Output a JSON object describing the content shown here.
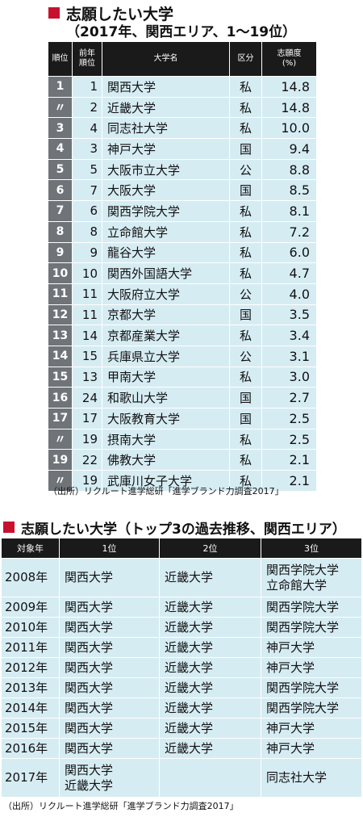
{
  "chart1": {
    "title": "志願したい大学",
    "subtitle": "（2017年、関西エリア、1～19位）",
    "headers": {
      "rank": "順位",
      "prev_rank": [
        "前年",
        "順位"
      ],
      "name": "大学名",
      "type": "区分",
      "rate": [
        "志願度",
        "(%)"
      ]
    },
    "rows": [
      {
        "rank": "1",
        "prev": "1",
        "name": "関西大学",
        "type": "私",
        "rate": "14.8"
      },
      {
        "rank": "〃",
        "prev": "2",
        "name": "近畿大学",
        "type": "私",
        "rate": "14.8"
      },
      {
        "rank": "3",
        "prev": "4",
        "name": "同志社大学",
        "type": "私",
        "rate": "10.0"
      },
      {
        "rank": "4",
        "prev": "3",
        "name": "神戸大学",
        "type": "国",
        "rate": "9.4"
      },
      {
        "rank": "5",
        "prev": "5",
        "name": "大阪市立大学",
        "type": "公",
        "rate": "8.8"
      },
      {
        "rank": "6",
        "prev": "7",
        "name": "大阪大学",
        "type": "国",
        "rate": "8.5"
      },
      {
        "rank": "7",
        "prev": "6",
        "name": "関西学院大学",
        "type": "私",
        "rate": "8.1"
      },
      {
        "rank": "8",
        "prev": "8",
        "name": "立命館大学",
        "type": "私",
        "rate": "7.2"
      },
      {
        "rank": "9",
        "prev": "9",
        "name": "龍谷大学",
        "type": "私",
        "rate": "6.0"
      },
      {
        "rank": "10",
        "prev": "10",
        "name": "関西外国語大学",
        "type": "私",
        "rate": "4.7"
      },
      {
        "rank": "11",
        "prev": "11",
        "name": "大阪府立大学",
        "type": "公",
        "rate": "4.0"
      },
      {
        "rank": "12",
        "prev": "11",
        "name": "京都大学",
        "type": "国",
        "rate": "3.5"
      },
      {
        "rank": "13",
        "prev": "14",
        "name": "京都産業大学",
        "type": "私",
        "rate": "3.4"
      },
      {
        "rank": "14",
        "prev": "15",
        "name": "兵庫県立大学",
        "type": "公",
        "rate": "3.1"
      },
      {
        "rank": "15",
        "prev": "13",
        "name": "甲南大学",
        "type": "私",
        "rate": "3.0"
      },
      {
        "rank": "16",
        "prev": "24",
        "name": "和歌山大学",
        "type": "国",
        "rate": "2.7"
      },
      {
        "rank": "17",
        "prev": "17",
        "name": "大阪教育大学",
        "type": "国",
        "rate": "2.5"
      },
      {
        "rank": "〃",
        "prev": "19",
        "name": "摂南大学",
        "type": "私",
        "rate": "2.5"
      },
      {
        "rank": "19",
        "prev": "22",
        "name": "佛教大学",
        "type": "私",
        "rate": "2.1"
      },
      {
        "rank": "〃",
        "prev": "19",
        "name": "武庫川女子大学",
        "type": "私",
        "rate": "2.1"
      }
    ],
    "source": "（出所）リクルート進学総研「進学ブランド力調査2017」"
  },
  "chart2": {
    "title": "志願したい大学（トップ3の過去推移、関西エリア）",
    "headers": {
      "year": "対象年",
      "first": "1位",
      "second": "2位",
      "third": "3位"
    },
    "rows": [
      {
        "year": "2008年",
        "first": [
          "関西大学"
        ],
        "second": [
          "近畿大学"
        ],
        "third": [
          "関西学院大学",
          "立命館大学"
        ]
      },
      {
        "year": "2009年",
        "first": [
          "関西大学"
        ],
        "second": [
          "近畿大学"
        ],
        "third": [
          "関西学院大学"
        ]
      },
      {
        "year": "2010年",
        "first": [
          "関西大学"
        ],
        "second": [
          "近畿大学"
        ],
        "third": [
          "関西学院大学"
        ]
      },
      {
        "year": "2011年",
        "first": [
          "関西大学"
        ],
        "second": [
          "近畿大学"
        ],
        "third": [
          "神戸大学"
        ]
      },
      {
        "year": "2012年",
        "first": [
          "関西大学"
        ],
        "second": [
          "近畿大学"
        ],
        "third": [
          "神戸大学"
        ]
      },
      {
        "year": "2013年",
        "first": [
          "関西大学"
        ],
        "second": [
          "近畿大学"
        ],
        "third": [
          "関西学院大学"
        ]
      },
      {
        "year": "2014年",
        "first": [
          "関西大学"
        ],
        "second": [
          "近畿大学"
        ],
        "third": [
          "関西学院大学"
        ]
      },
      {
        "year": "2015年",
        "first": [
          "関西大学"
        ],
        "second": [
          "近畿大学"
        ],
        "third": [
          "神戸大学"
        ]
      },
      {
        "year": "2016年",
        "first": [
          "関西大学"
        ],
        "second": [
          "近畿大学"
        ],
        "third": [
          "神戸大学"
        ]
      },
      {
        "year": "2017年",
        "first": [
          "関西大学",
          "近畿大学"
        ],
        "second": [],
        "third": [
          "同志社大学"
        ]
      }
    ],
    "source": "（出所）リクルート進学総研「進学ブランド力調査2017」"
  },
  "colors": {
    "accent": "#c8102e",
    "header_bg": "#1a1a1a",
    "row_bg": "#d6ecf3",
    "rank_bg": "#6f7479"
  }
}
